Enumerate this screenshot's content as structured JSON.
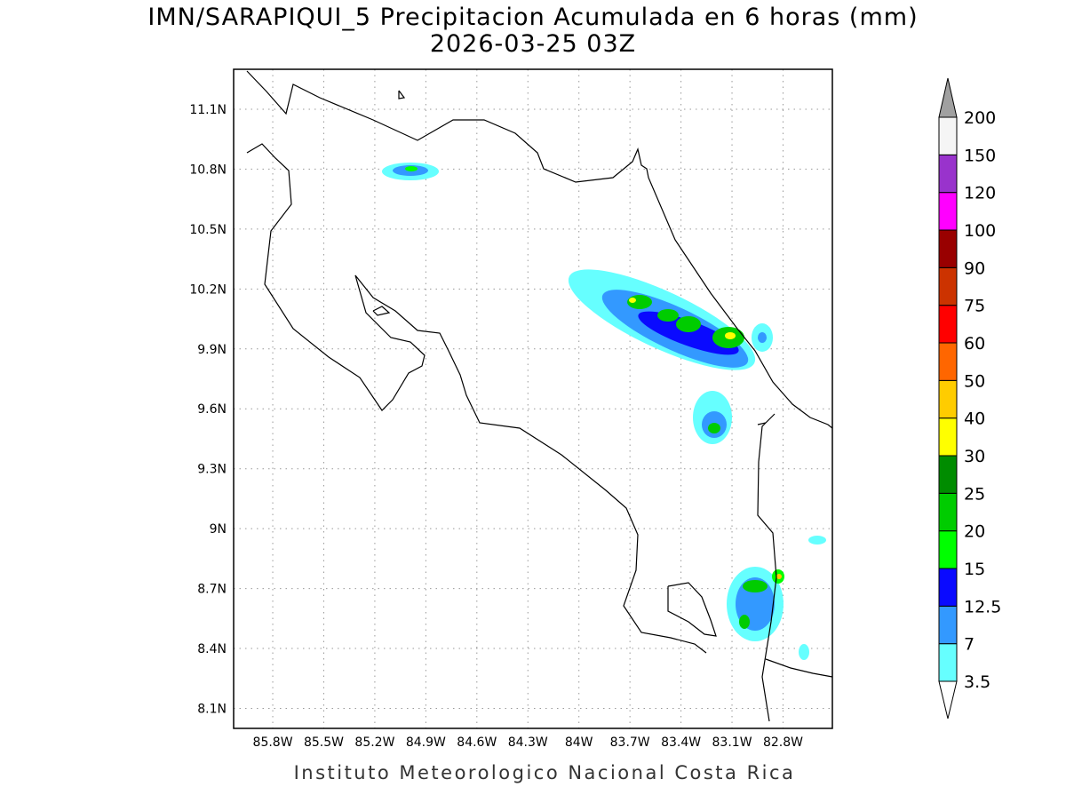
{
  "map": {
    "title": "IMN/SARAPIQUI_5 Precipitacion Acumulada en 6 horas (mm)",
    "subtitle": "2026-03-25 03Z",
    "xlim": [
      -86.03,
      -82.51
    ],
    "ylim": [
      8.0,
      11.3
    ],
    "xticks": [
      {
        "value": -85.8,
        "label": "85.8W"
      },
      {
        "value": -85.5,
        "label": "85.5W"
      },
      {
        "value": -85.2,
        "label": "85.2W"
      },
      {
        "value": -84.9,
        "label": "84.9W"
      },
      {
        "value": -84.6,
        "label": "84.6W"
      },
      {
        "value": -84.3,
        "label": "84.3W"
      },
      {
        "value": -84.0,
        "label": "84W"
      },
      {
        "value": -83.7,
        "label": "83.7W"
      },
      {
        "value": -83.4,
        "label": "83.4W"
      },
      {
        "value": -83.1,
        "label": "83.1W"
      },
      {
        "value": -82.8,
        "label": "82.8W"
      }
    ],
    "yticks": [
      {
        "value": 8.1,
        "label": "8.1N"
      },
      {
        "value": 8.4,
        "label": "8.4N"
      },
      {
        "value": 8.7,
        "label": "8.7N"
      },
      {
        "value": 9.0,
        "label": "9N"
      },
      {
        "value": 9.3,
        "label": "9.3N"
      },
      {
        "value": 9.6,
        "label": "9.6N"
      },
      {
        "value": 9.9,
        "label": "9.9N"
      },
      {
        "value": 10.2,
        "label": "10.2N"
      },
      {
        "value": 10.5,
        "label": "10.5N"
      },
      {
        "value": 10.8,
        "label": "10.8N"
      },
      {
        "value": 11.1,
        "label": "11.1N"
      }
    ],
    "grid": true,
    "colorbar": {
      "levels": [
        3.5,
        7,
        12.5,
        15,
        20,
        25,
        30,
        40,
        50,
        60,
        75,
        90,
        100,
        120,
        150,
        200
      ],
      "colors": [
        "#66ffff",
        "#3399ff",
        "#0a0aff",
        "#00ff00",
        "#00cc00",
        "#008c00",
        "#ffff00",
        "#ffcc00",
        "#ff6600",
        "#ff0000",
        "#cc3300",
        "#990000",
        "#ff00ff",
        "#9933cc",
        "#f5f5f5"
      ],
      "under_color": "#ffffff",
      "over_color": "#a0a0a0"
    },
    "footer": "Instituto Meteorologico Nacional Costa Rica"
  }
}
